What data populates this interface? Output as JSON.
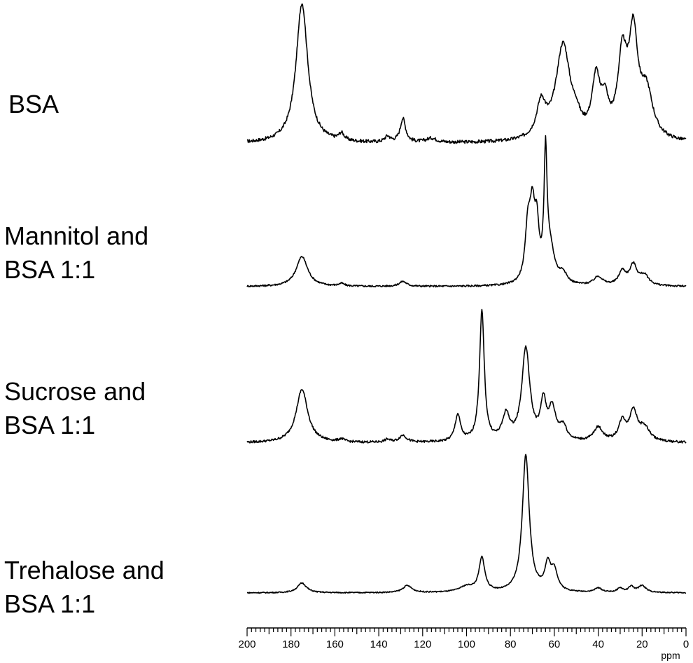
{
  "chart_data": {
    "type": "line",
    "title": "",
    "xlabel": "ppm",
    "ylabel": "",
    "x_reversed": true,
    "xlim": [
      200,
      0
    ],
    "x_ticks": [
      "200",
      "180",
      "160",
      "140",
      "120",
      "100",
      "80",
      "60",
      "40",
      "20",
      "0"
    ],
    "grid": false,
    "legend": "none",
    "series": [
      {
        "name": "BSA",
        "label_lines": [
          "BSA"
        ],
        "noise": 1.2,
        "baseline": 0,
        "peaks": [
          {
            "ppm": 175,
            "height": 100,
            "width": 3.2
          },
          {
            "ppm": 157,
            "height": 5,
            "width": 1.5
          },
          {
            "ppm": 136,
            "height": 4,
            "width": 1.5
          },
          {
            "ppm": 129,
            "height": 17,
            "width": 1.5
          },
          {
            "ppm": 116,
            "height": 3,
            "width": 3
          },
          {
            "ppm": 66,
            "height": 24,
            "width": 2.5
          },
          {
            "ppm": 56,
            "height": 68,
            "width": 4
          },
          {
            "ppm": 50,
            "height": 8,
            "width": 2
          },
          {
            "ppm": 41,
            "height": 40,
            "width": 2.2
          },
          {
            "ppm": 37,
            "height": 22,
            "width": 2
          },
          {
            "ppm": 29,
            "height": 55,
            "width": 2.5
          },
          {
            "ppm": 24,
            "height": 70,
            "width": 2.5
          },
          {
            "ppm": 18,
            "height": 32,
            "width": 3.5
          }
        ]
      },
      {
        "name": "Mannitol and BSA 1:1",
        "label_lines": [
          "Mannitol and",
          "BSA 1:1"
        ],
        "noise": 0.7,
        "baseline": 0,
        "peaks": [
          {
            "ppm": 175,
            "height": 24,
            "width": 3.2
          },
          {
            "ppm": 157,
            "height": 2,
            "width": 1.5
          },
          {
            "ppm": 129,
            "height": 4,
            "width": 2
          },
          {
            "ppm": 72,
            "height": 44,
            "width": 1.5
          },
          {
            "ppm": 70,
            "height": 50,
            "width": 1.3
          },
          {
            "ppm": 68,
            "height": 40,
            "width": 1.2
          },
          {
            "ppm": 64,
            "height": 96,
            "width": 0.8
          },
          {
            "ppm": 62,
            "height": 28,
            "width": 2.5
          },
          {
            "ppm": 56,
            "height": 8,
            "width": 2
          },
          {
            "ppm": 40,
            "height": 7,
            "width": 2.5
          },
          {
            "ppm": 29,
            "height": 11,
            "width": 2
          },
          {
            "ppm": 24,
            "height": 16,
            "width": 2
          },
          {
            "ppm": 19,
            "height": 8,
            "width": 2.5
          }
        ]
      },
      {
        "name": "Sucrose and BSA 1:1",
        "label_lines": [
          "Sucrose and",
          "BSA 1:1"
        ],
        "noise": 0.8,
        "baseline": 0,
        "peaks": [
          {
            "ppm": 175,
            "height": 38,
            "width": 3.2
          },
          {
            "ppm": 157,
            "height": 2,
            "width": 1.5
          },
          {
            "ppm": 136,
            "height": 2,
            "width": 1.5
          },
          {
            "ppm": 129,
            "height": 5,
            "width": 2
          },
          {
            "ppm": 104,
            "height": 19,
            "width": 1.5
          },
          {
            "ppm": 93,
            "height": 93,
            "width": 1.3
          },
          {
            "ppm": 82,
            "height": 18,
            "width": 2
          },
          {
            "ppm": 73,
            "height": 66,
            "width": 2.2
          },
          {
            "ppm": 65,
            "height": 26,
            "width": 1.5
          },
          {
            "ppm": 61,
            "height": 22,
            "width": 2
          },
          {
            "ppm": 56,
            "height": 10,
            "width": 2
          },
          {
            "ppm": 40,
            "height": 10,
            "width": 2.5
          },
          {
            "ppm": 29,
            "height": 14,
            "width": 2
          },
          {
            "ppm": 24,
            "height": 21,
            "width": 2
          },
          {
            "ppm": 19,
            "height": 10,
            "width": 3
          }
        ]
      },
      {
        "name": "Trehalose and BSA 1:1",
        "label_lines": [
          "Trehalose and",
          "BSA 1:1"
        ],
        "noise": 0.4,
        "baseline": 0,
        "peaks": [
          {
            "ppm": 175,
            "height": 7,
            "width": 2.5
          },
          {
            "ppm": 127,
            "height": 5,
            "width": 2.5
          },
          {
            "ppm": 100,
            "height": 4,
            "width": 4
          },
          {
            "ppm": 93,
            "height": 24,
            "width": 1.6
          },
          {
            "ppm": 73,
            "height": 98,
            "width": 1.9
          },
          {
            "ppm": 63,
            "height": 18,
            "width": 1.6
          },
          {
            "ppm": 60,
            "height": 14,
            "width": 1.8
          },
          {
            "ppm": 40,
            "height": 3,
            "width": 2
          },
          {
            "ppm": 30,
            "height": 3,
            "width": 1.5
          },
          {
            "ppm": 25,
            "height": 4,
            "width": 1.5
          },
          {
            "ppm": 20,
            "height": 5,
            "width": 2
          }
        ]
      }
    ]
  }
}
